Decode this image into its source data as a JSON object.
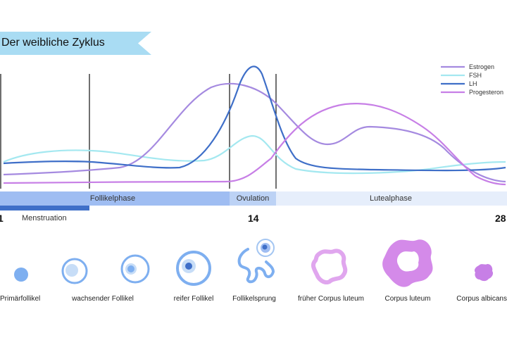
{
  "title": "Der weibliche Zyklus",
  "legend": [
    {
      "label": "Estrogen",
      "color": "#a58ae0"
    },
    {
      "label": "FSH",
      "color": "#a4e8f0"
    },
    {
      "label": "LH",
      "color": "#3f6fc8"
    },
    {
      "label": "Progesteron",
      "color": "#c77fe6"
    }
  ],
  "phases": {
    "follicular": "Follikelphase",
    "ovulation": "Ovulation",
    "luteal": "Lutealphase",
    "menstruation": "Menstruation"
  },
  "day_axis": {
    "start": "1",
    "mid": "14",
    "end": "28"
  },
  "stages": [
    {
      "label": "Primärfollikel"
    },
    {
      "label": "wachsender Follikel"
    },
    {
      "label": "reifer Follikel"
    },
    {
      "label": "Follikelsprung"
    },
    {
      "label": "früher Corpus luteum"
    },
    {
      "label": "Corpus luteum"
    },
    {
      "label": "Corpus albicans"
    }
  ],
  "colors": {
    "banner": "#a9dcf3",
    "follicular_bar": "#9fbdf2",
    "ovulation_bar": "#bcd2f5",
    "luteal_bar": "#e6eefb",
    "menstruation_bar": "#3f6fc8"
  }
}
